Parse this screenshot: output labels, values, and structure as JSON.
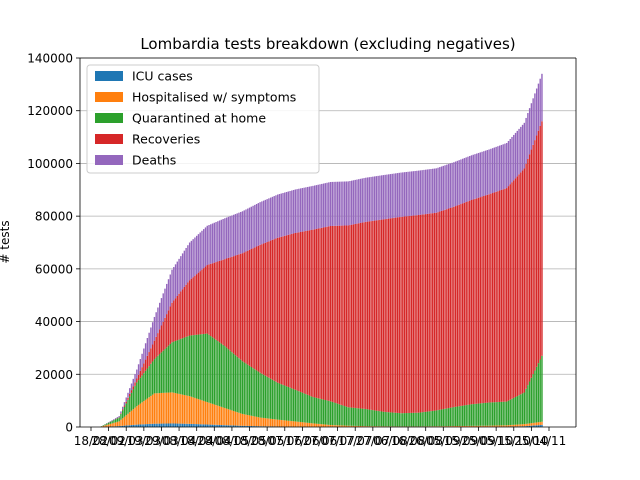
{
  "chart_data": {
    "type": "bar",
    "stacked": true,
    "title": "Lombardia tests breakdown (excluding negatives)",
    "xlabel": "",
    "ylabel": "# tests",
    "ylim": [
      0,
      140000
    ],
    "yticks": [
      0,
      20000,
      40000,
      60000,
      80000,
      100000,
      120000,
      140000
    ],
    "xticks": [
      "18/02",
      "28/02",
      "09/03",
      "19/03",
      "29/03",
      "08/04",
      "18/04",
      "28/04",
      "08/05",
      "18/05",
      "28/05",
      "07/06",
      "17/06",
      "27/06",
      "07/07",
      "17/07",
      "27/07",
      "06/08",
      "16/08",
      "26/08",
      "05/09",
      "15/09",
      "25/09",
      "05/10",
      "15/10",
      "25/10",
      "04/11"
    ],
    "grid": "horizontal",
    "legend_position": "upper left",
    "series": [
      {
        "name": "ICU cases",
        "color": "#1f77b4",
        "x": [
          "24/02",
          "05/03",
          "15/03",
          "25/03",
          "04/04",
          "14/04",
          "24/04",
          "04/05",
          "14/05",
          "24/05",
          "03/06",
          "13/06",
          "23/06",
          "03/07",
          "13/07",
          "23/07",
          "02/08",
          "12/08",
          "22/08",
          "01/09",
          "11/09",
          "21/09",
          "01/10",
          "11/10",
          "21/10",
          "31/10"
        ],
        "values": [
          0,
          350,
          900,
          1250,
          1350,
          1200,
          950,
          700,
          450,
          300,
          200,
          120,
          80,
          60,
          40,
          30,
          30,
          30,
          30,
          40,
          60,
          80,
          100,
          150,
          300,
          800
        ]
      },
      {
        "name": "Hospitalised w/ symptoms",
        "color": "#ff7f0e",
        "x": [
          "24/02",
          "05/03",
          "15/03",
          "25/03",
          "04/04",
          "14/04",
          "24/04",
          "04/05",
          "14/05",
          "24/05",
          "03/06",
          "13/06",
          "23/06",
          "03/07",
          "13/07",
          "23/07",
          "02/08",
          "12/08",
          "22/08",
          "01/09",
          "11/09",
          "21/09",
          "01/10",
          "11/10",
          "21/10",
          "31/10"
        ],
        "values": [
          200,
          1800,
          7000,
          11500,
          11800,
          10500,
          8500,
          6500,
          4500,
          3300,
          2600,
          2000,
          1300,
          700,
          450,
          300,
          250,
          200,
          200,
          250,
          300,
          350,
          400,
          500,
          800,
          1200
        ]
      },
      {
        "name": "Quarantined at home",
        "color": "#2ca02c",
        "x": [
          "24/02",
          "05/03",
          "15/03",
          "25/03",
          "04/04",
          "14/04",
          "24/04",
          "04/05",
          "14/05",
          "24/05",
          "03/06",
          "13/06",
          "23/06",
          "03/07",
          "13/07",
          "23/07",
          "02/08",
          "12/08",
          "22/08",
          "01/09",
          "11/09",
          "21/09",
          "01/10",
          "11/10",
          "21/10",
          "31/10"
        ],
        "values": [
          100,
          1500,
          9000,
          13000,
          19000,
          23000,
          26000,
          23500,
          20000,
          17000,
          14000,
          12000,
          10000,
          9000,
          7000,
          6500,
          5500,
          5000,
          5200,
          6000,
          7200,
          8200,
          8800,
          9000,
          12000,
          25000
        ]
      },
      {
        "name": "Recoveries",
        "color": "#d62728",
        "x": [
          "24/02",
          "05/03",
          "15/03",
          "25/03",
          "04/04",
          "14/04",
          "24/04",
          "04/05",
          "14/05",
          "24/05",
          "03/06",
          "13/06",
          "23/06",
          "03/07",
          "13/07",
          "23/07",
          "02/08",
          "12/08",
          "22/08",
          "01/09",
          "11/09",
          "21/09",
          "01/10",
          "11/10",
          "21/10",
          "31/10"
        ],
        "values": [
          0,
          100,
          1500,
          7000,
          15000,
          21000,
          26000,
          33000,
          41000,
          48500,
          55000,
          59500,
          63500,
          66500,
          69000,
          71000,
          73000,
          74500,
          75000,
          75000,
          76000,
          77500,
          79000,
          81000,
          85000,
          89000
        ]
      },
      {
        "name": "Deaths",
        "color": "#9467bd",
        "x": [
          "24/02",
          "05/03",
          "15/03",
          "25/03",
          "04/04",
          "14/04",
          "24/04",
          "04/05",
          "14/05",
          "24/05",
          "03/06",
          "13/06",
          "23/06",
          "03/07",
          "13/07",
          "23/07",
          "02/08",
          "12/08",
          "22/08",
          "01/09",
          "11/09",
          "21/09",
          "01/10",
          "11/10",
          "21/10",
          "31/10"
        ],
        "values": [
          0,
          400,
          3400,
          9000,
          12500,
          14300,
          14900,
          15500,
          15900,
          16200,
          16400,
          16500,
          16600,
          16700,
          16700,
          16750,
          16800,
          16800,
          16850,
          16850,
          16900,
          16950,
          17000,
          17100,
          17300,
          18000
        ]
      }
    ]
  }
}
